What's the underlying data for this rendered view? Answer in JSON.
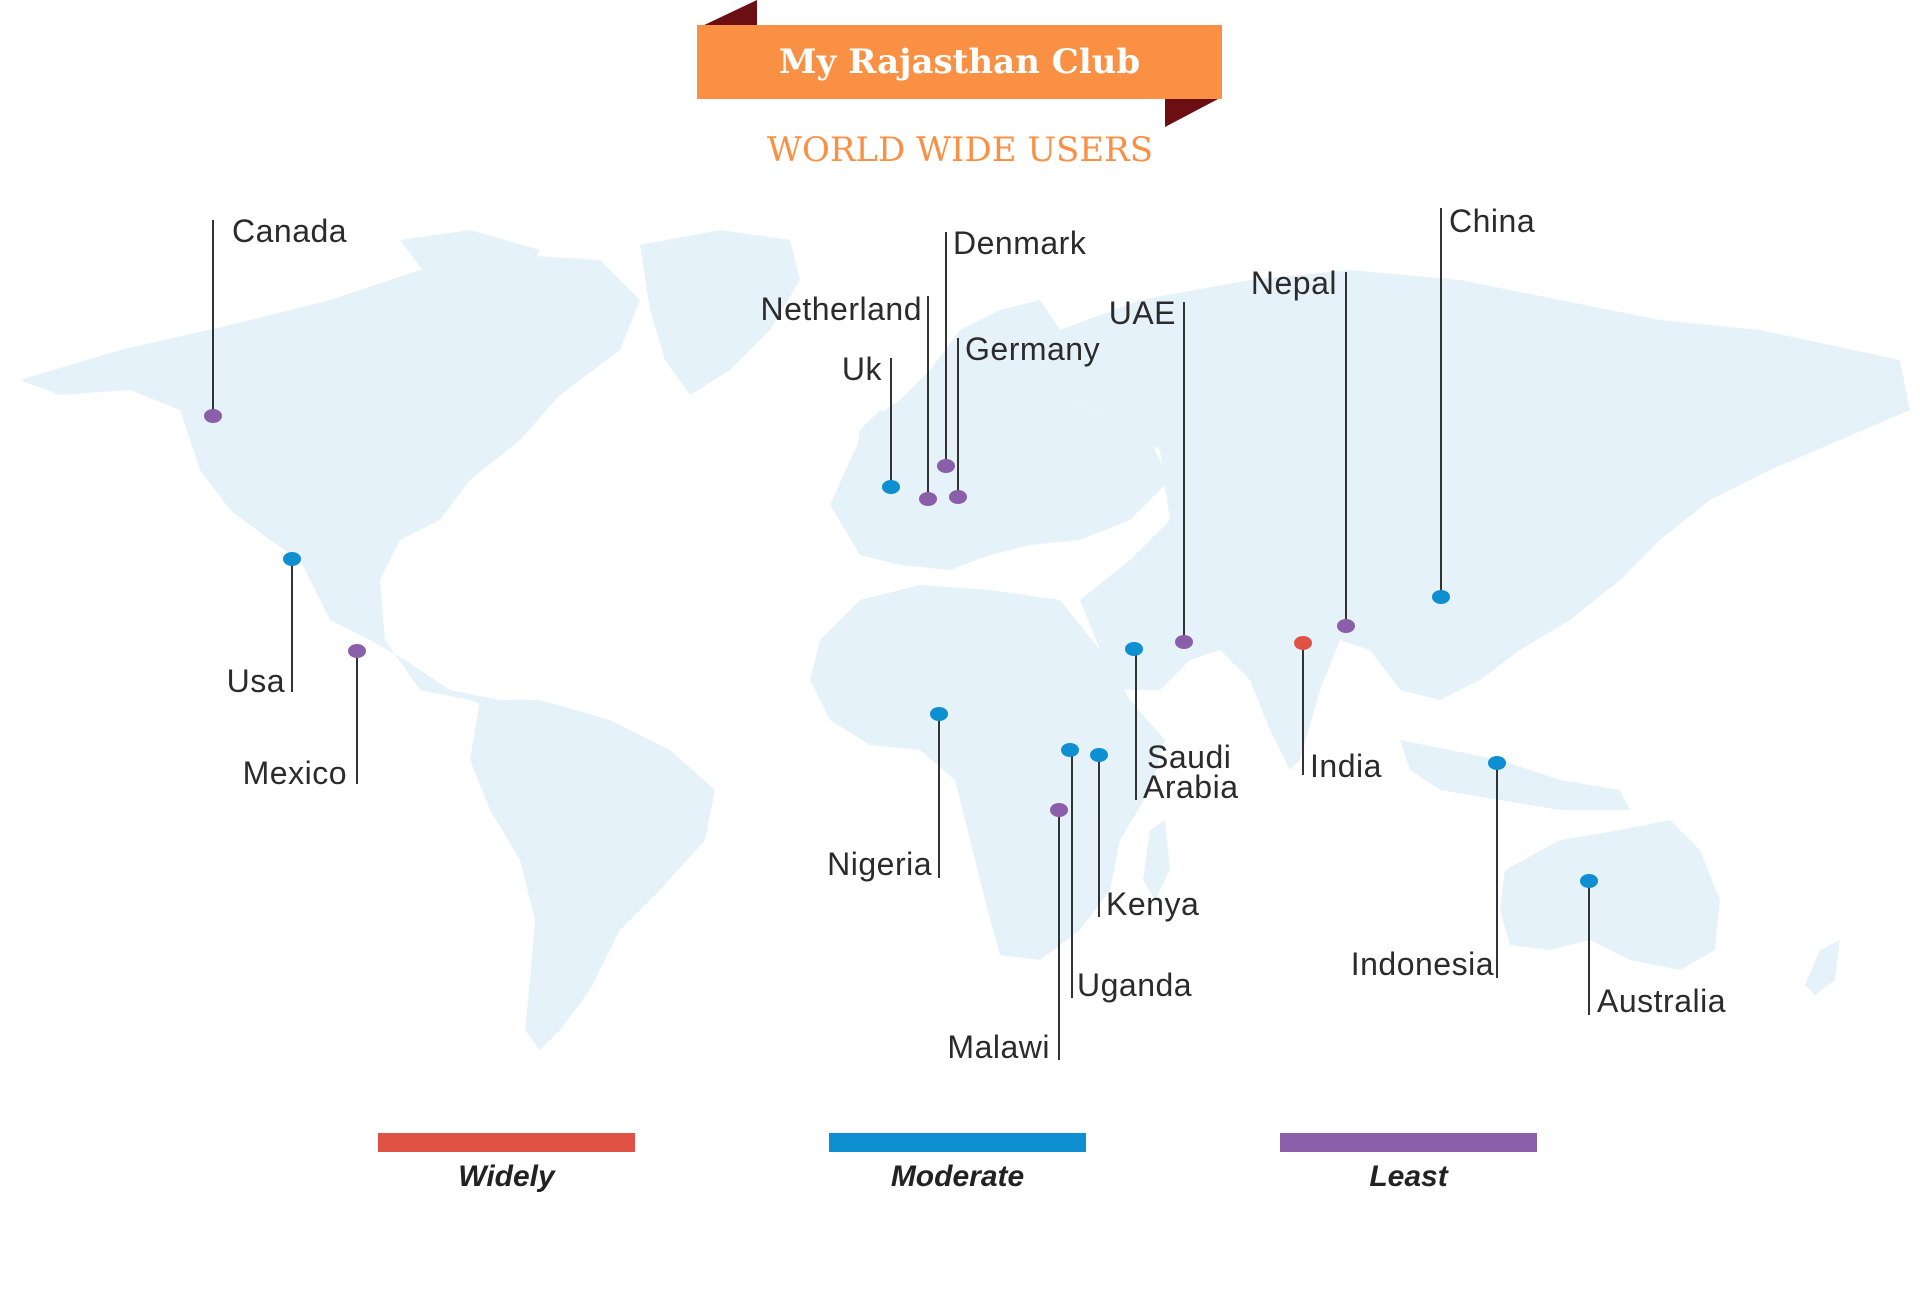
{
  "header": {
    "brand_title": "My Rajasthan Club",
    "subtitle": "WORLD WIDE USERS"
  },
  "colors": {
    "banner": "#f99043",
    "banner_fold": "#6b0f14",
    "land": "#e6f2f9",
    "widely": "#e05244",
    "moderate": "#0d8fd2",
    "least": "#8a5ea8"
  },
  "legend": [
    {
      "label": "Widely",
      "level": "widely"
    },
    {
      "label": "Moderate",
      "level": "moderate"
    },
    {
      "label": "Least",
      "level": "least"
    }
  ],
  "markers": [
    {
      "country": "Canada",
      "level": "least"
    },
    {
      "country": "Usa",
      "level": "moderate"
    },
    {
      "country": "Mexico",
      "level": "least"
    },
    {
      "country": "Uk",
      "level": "moderate"
    },
    {
      "country": "Netherland",
      "level": "least"
    },
    {
      "country": "Denmark",
      "level": "least"
    },
    {
      "country": "Germany",
      "level": "least"
    },
    {
      "country": "UAE",
      "level": "least"
    },
    {
      "country": "Nepal",
      "level": "least"
    },
    {
      "country": "China",
      "level": "moderate"
    },
    {
      "country": "India",
      "level": "widely"
    },
    {
      "country": "Saudi Arabia",
      "level": "moderate"
    },
    {
      "country": "Nigeria",
      "level": "moderate"
    },
    {
      "country": "Kenya",
      "level": "moderate"
    },
    {
      "country": "Uganda",
      "level": "moderate"
    },
    {
      "country": "Malawi",
      "level": "least"
    },
    {
      "country": "Indonesia",
      "level": "moderate"
    },
    {
      "country": "Australia",
      "level": "moderate"
    }
  ]
}
